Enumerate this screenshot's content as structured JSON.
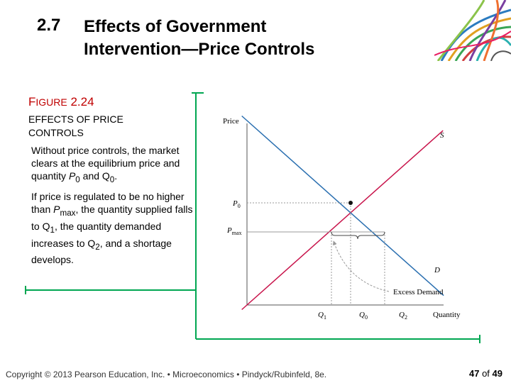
{
  "slide": {
    "section_number": "2.7",
    "title_line1": "Effects of Government",
    "title_line2": "Intervention—Price Controls"
  },
  "figure": {
    "label_prefix": "F",
    "label_small": "IGURE",
    "label_number": " 2.24",
    "caption_line1": "EFFECTS OF PRICE",
    "caption_line2": "CONTROLS",
    "para1": {
      "text": "Without price controls, the market clears at the equilibrium price and quantity ",
      "p0_var": "P",
      "p0_sub": "0",
      "mid": " and Q",
      "q0_sub": "0",
      "end": "."
    },
    "para2": {
      "t1": "If price is regulated to be no higher than ",
      "pmax_var": "P",
      "pmax_sub": "max",
      "t2": ", the quantity supplied falls to Q",
      "q1_sub": "1",
      "t3": ", the quantity demanded increases to Q",
      "q2_sub": "2",
      "t4": ", and a shortage develops."
    }
  },
  "chart_data": {
    "type": "line",
    "ylabel": "Price",
    "xlabel": "Quantity",
    "series": [
      {
        "name": "S",
        "color": "#c8144b",
        "points": [
          [
            0,
            0
          ],
          [
            10,
            10
          ]
        ]
      },
      {
        "name": "D",
        "color": "#2a6fb0",
        "points": [
          [
            0,
            10
          ],
          [
            10,
            0
          ]
        ]
      }
    ],
    "labels": {
      "p0": {
        "var": "P",
        "sub": "0"
      },
      "pmax": {
        "var": "P",
        "sub": "max"
      },
      "q1": {
        "var": "Q",
        "sub": "1"
      },
      "q0": {
        "var": "Q",
        "sub": "0"
      },
      "q2": {
        "var": "Q",
        "sub": "2"
      },
      "annotation": "Excess Demand"
    },
    "equilibrium": {
      "price": "P0",
      "quantity": "Q0"
    },
    "price_ceiling": "Pmax",
    "shortage_range": [
      "Q1",
      "Q2"
    ]
  },
  "footer": {
    "text": "Copyright © 2013 Pearson Education, Inc. • Microeconomics • Pindyck/Rubinfeld, 8e.",
    "page_current": "47",
    "page_of": "of",
    "page_total": "49"
  },
  "colors": {
    "figure_label": "#c00000",
    "supply": "#c8144b",
    "demand": "#2a6fb0",
    "frame": "#00a651"
  }
}
